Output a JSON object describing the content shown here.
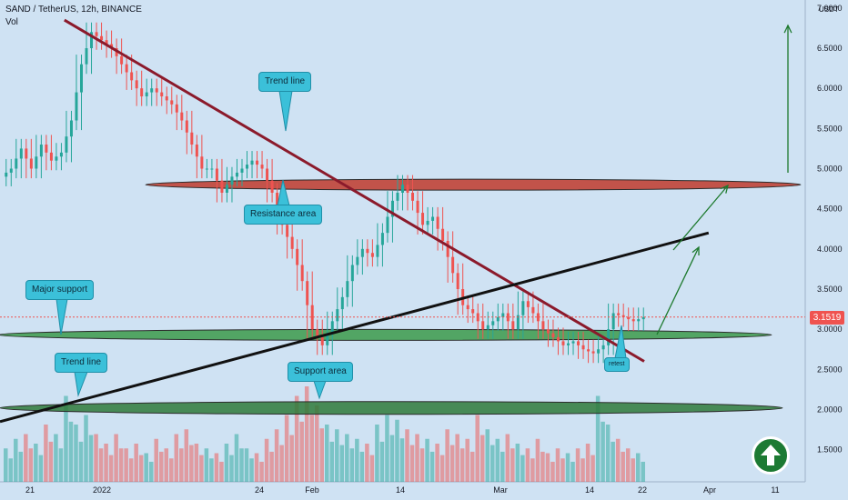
{
  "header": {
    "symbol_line": "SAND / TetherUS, 12h, BINANCE",
    "indicator": "Vol"
  },
  "axis": {
    "currency": "USDT",
    "current_price": "3.1519"
  },
  "colors": {
    "up": "#26a69a",
    "down": "#ef5350",
    "background": "#cfe2f3",
    "resistance": "#c0392b",
    "support": "#3c9a4a",
    "trendline_down": "#8b1a2b",
    "trendline_up": "#111111"
  },
  "annotations": {
    "trend_line_top": "Trend line",
    "resistance_area": "Resistance area",
    "major_support": "Major support",
    "trend_line_bottom": "Trend line",
    "support_area": "Support area",
    "retest": "retest"
  },
  "icons": {
    "logo": "up-arrow-circle-icon"
  },
  "chart_data": {
    "type": "candlestick",
    "title": "SAND / TetherUS, 12h, BINANCE",
    "ylabel": "USDT",
    "ylim": [
      1.1,
      7.1
    ],
    "y_ticks": [
      7.0,
      6.5,
      6.0,
      5.5,
      5.0,
      4.5,
      4.0,
      3.5,
      3.0,
      2.5,
      2.0,
      1.5
    ],
    "x_ticks": [
      "21",
      "2022",
      "24",
      "Feb",
      "14",
      "Mar",
      "14",
      "22",
      "Apr",
      "11"
    ],
    "current_price": 3.1519,
    "close_series": [
      5.0,
      5.25,
      5.0,
      5.3,
      5.1,
      5.2,
      5.6,
      6.3,
      6.7,
      6.6,
      6.5,
      6.3,
      6.1,
      5.9,
      6.0,
      5.9,
      5.8,
      5.6,
      5.3,
      5.0,
      5.0,
      4.7,
      4.9,
      5.0,
      5.1,
      5.0,
      4.7,
      4.3,
      4.0,
      3.6,
      3.0,
      2.8,
      3.1,
      3.4,
      3.8,
      4.0,
      3.9,
      4.2,
      4.6,
      4.8,
      4.6,
      4.3,
      4.4,
      4.1,
      3.7,
      3.3,
      3.2,
      3.0,
      3.1,
      3.2,
      3.0,
      3.35,
      3.2,
      3.0,
      2.9,
      2.8,
      2.85,
      2.75,
      2.7,
      2.8,
      3.2,
      3.15,
      3.1,
      3.15
    ],
    "volume_relative": [
      0.35,
      0.45,
      0.5,
      0.4,
      0.6,
      0.5,
      0.9,
      0.6,
      0.7,
      0.5,
      0.4,
      0.5,
      0.35,
      0.4,
      0.3,
      0.45,
      0.35,
      0.5,
      0.55,
      0.4,
      0.35,
      0.3,
      0.4,
      0.5,
      0.35,
      0.3,
      0.45,
      0.55,
      0.7,
      0.9,
      1.0,
      0.8,
      0.6,
      0.55,
      0.5,
      0.45,
      0.4,
      0.6,
      0.7,
      0.65,
      0.55,
      0.5,
      0.45,
      0.4,
      0.55,
      0.5,
      0.45,
      0.7,
      0.55,
      0.45,
      0.5,
      0.4,
      0.35,
      0.45,
      0.3,
      0.35,
      0.3,
      0.35,
      0.4,
      0.9,
      0.6,
      0.45,
      0.35,
      0.3
    ],
    "levels": {
      "resistance": 4.8,
      "major_support": 2.93,
      "support_area": 2.02
    },
    "trendlines": [
      {
        "from": [
          0.08,
          6.85
        ],
        "to": [
          0.8,
          2.6
        ]
      },
      {
        "from": [
          0.0,
          1.85
        ],
        "to": [
          0.88,
          4.2
        ]
      }
    ]
  }
}
